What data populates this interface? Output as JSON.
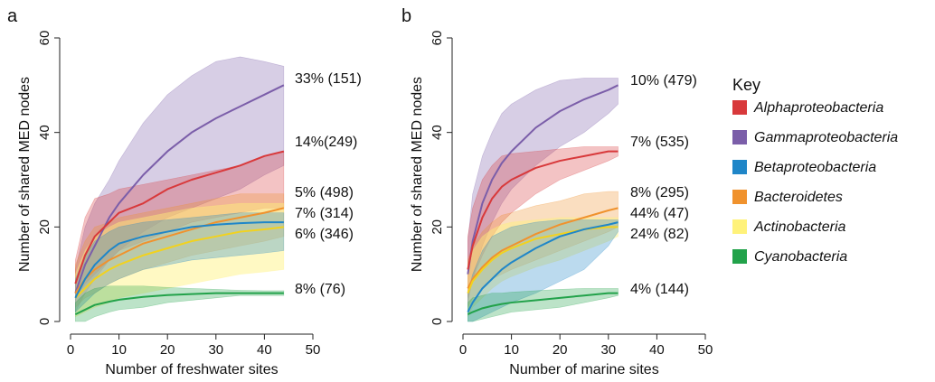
{
  "key": {
    "title": "Key",
    "entries": [
      {
        "label": "Alphaproteobacteria",
        "color": "#d8393b"
      },
      {
        "label": "Gammaproteobacteria",
        "color": "#7b5ea9"
      },
      {
        "label": "Betaproteobacteria",
        "color": "#1f86c8"
      },
      {
        "label": "Bacteroidetes",
        "color": "#f0922d"
      },
      {
        "label": "Actinobacteria",
        "color": "#fff27a"
      },
      {
        "label": "Cyanobacteria",
        "color": "#22a24a"
      }
    ]
  },
  "chart_data": [
    {
      "type": "line",
      "panel": "a",
      "xlabel": "Number of freshwater sites",
      "ylabel": "Number of shared MED nodes",
      "xlim": [
        0,
        50
      ],
      "ylim": [
        0,
        60
      ],
      "xticks": [
        0,
        10,
        20,
        30,
        40,
        50
      ],
      "yticks": [
        0,
        20,
        40,
        60
      ],
      "grid": false,
      "series": [
        {
          "name": "Alphaproteobacteria",
          "annotation": "14%(249)",
          "x": [
            1,
            3,
            5,
            8,
            10,
            15,
            20,
            25,
            30,
            35,
            40,
            44
          ],
          "y": [
            8,
            14,
            18,
            21,
            23,
            25,
            28,
            30,
            31.5,
            33,
            35,
            36
          ],
          "lower": [
            5,
            8,
            10,
            13,
            15,
            17,
            19,
            21,
            22,
            23,
            24,
            24
          ],
          "upper": [
            13,
            22,
            26,
            27,
            28,
            29,
            30,
            31,
            32,
            33,
            35,
            36
          ]
        },
        {
          "name": "Gammaproteobacteria",
          "annotation": "33% (151)",
          "x": [
            1,
            3,
            5,
            8,
            10,
            15,
            20,
            25,
            30,
            35,
            40,
            44
          ],
          "y": [
            6,
            12,
            16,
            22,
            25,
            31,
            36,
            40,
            43,
            45.5,
            48,
            50
          ],
          "lower": [
            2,
            6,
            9,
            13,
            15,
            19,
            22,
            24,
            26,
            28,
            31,
            33
          ],
          "upper": [
            11,
            20,
            25,
            30,
            34,
            42,
            48,
            52,
            55,
            56,
            55,
            54
          ]
        },
        {
          "name": "Betaproteobacteria",
          "annotation": "7% (314)",
          "x": [
            1,
            3,
            5,
            8,
            10,
            15,
            20,
            25,
            30,
            35,
            40,
            44
          ],
          "y": [
            5,
            9,
            12,
            15,
            16.5,
            18,
            19,
            20,
            20.5,
            20.8,
            21,
            21
          ],
          "lower": [
            2,
            4,
            6,
            8,
            9,
            11,
            12,
            13,
            13.5,
            14,
            14.5,
            15
          ],
          "upper": [
            9,
            14,
            17,
            19,
            20,
            21,
            21.5,
            22,
            22.5,
            23,
            23,
            23
          ]
        },
        {
          "name": "Bacteroidetes",
          "annotation": "5% (498)",
          "x": [
            1,
            3,
            5,
            8,
            10,
            15,
            20,
            25,
            30,
            35,
            40,
            44
          ],
          "y": [
            6,
            9,
            11,
            13,
            14,
            16.5,
            18,
            19.5,
            21,
            22,
            23,
            24
          ],
          "lower": [
            3,
            5,
            6,
            8,
            9,
            11,
            12.5,
            14,
            15,
            16,
            17,
            18
          ],
          "upper": [
            12,
            17,
            20,
            21,
            22,
            23,
            24,
            25,
            26,
            27,
            27,
            27
          ]
        },
        {
          "name": "Actinobacteria",
          "annotation": "6% (346)",
          "x": [
            1,
            3,
            5,
            8,
            10,
            15,
            20,
            25,
            30,
            35,
            40,
            44
          ],
          "y": [
            5,
            7,
            9,
            11,
            12,
            14,
            15.5,
            17,
            18,
            19,
            19.5,
            20
          ],
          "lower": [
            1,
            2,
            3,
            4,
            5,
            6,
            7,
            8,
            9,
            10,
            10.5,
            11
          ],
          "upper": [
            10,
            15,
            18,
            20,
            21,
            22,
            23,
            24,
            24.5,
            25,
            25,
            25
          ]
        },
        {
          "name": "Cyanobacteria",
          "annotation": "8% (76)",
          "x": [
            1,
            3,
            5,
            8,
            10,
            15,
            20,
            25,
            30,
            35,
            40,
            44
          ],
          "y": [
            1.5,
            2.5,
            3.5,
            4.2,
            4.6,
            5.2,
            5.6,
            5.8,
            6,
            6,
            6,
            6
          ],
          "lower": [
            0,
            0,
            1,
            2,
            2.5,
            3,
            4,
            4.5,
            5,
            5.5,
            5.5,
            5.5
          ],
          "upper": [
            4,
            6,
            7,
            7.5,
            7.5,
            7.5,
            7.2,
            7,
            6.8,
            6.6,
            6.5,
            6.5
          ]
        }
      ]
    },
    {
      "type": "line",
      "panel": "b",
      "xlabel": "Number of marine sites",
      "ylabel": "Number of shared MED nodes",
      "xlim": [
        0,
        50
      ],
      "ylim": [
        0,
        60
      ],
      "xticks": [
        0,
        10,
        20,
        30,
        40,
        50
      ],
      "yticks": [
        0,
        20,
        40,
        60
      ],
      "grid": false,
      "series": [
        {
          "name": "Alphaproteobacteria",
          "annotation": "7% (535)",
          "x": [
            1,
            2,
            4,
            6,
            8,
            10,
            15,
            20,
            25,
            30,
            32
          ],
          "y": [
            11,
            16,
            22,
            26,
            28.5,
            30,
            32.5,
            34,
            35,
            36,
            36
          ],
          "lower": [
            5,
            9,
            14,
            18,
            21,
            23,
            27,
            30,
            32,
            34,
            35
          ],
          "upper": [
            18,
            24,
            30,
            33,
            35,
            35.5,
            36,
            36.5,
            37,
            37,
            37
          ]
        },
        {
          "name": "Gammaproteobacteria",
          "annotation": "10% (479)",
          "x": [
            1,
            2,
            4,
            6,
            8,
            10,
            15,
            20,
            25,
            30,
            32
          ],
          "y": [
            10,
            17,
            25,
            30,
            33.5,
            36,
            41,
            44.5,
            47,
            49,
            50
          ],
          "lower": [
            4,
            9,
            16,
            21,
            25,
            28,
            33,
            37,
            40,
            44,
            46
          ],
          "upper": [
            17,
            27,
            35,
            40,
            44,
            46,
            49,
            51,
            51.5,
            51.5,
            51.5
          ]
        },
        {
          "name": "Betaproteobacteria",
          "annotation": "44% (47)",
          "x": [
            1,
            2,
            4,
            6,
            8,
            10,
            15,
            20,
            25,
            30,
            32
          ],
          "y": [
            2,
            4,
            7,
            9,
            11,
            12.5,
            15.5,
            18,
            19.5,
            20.5,
            21
          ],
          "lower": [
            0,
            0,
            1,
            2,
            3,
            4,
            6,
            8.5,
            11,
            16,
            19
          ],
          "upper": [
            6,
            10,
            15,
            18,
            19,
            20,
            21,
            21.5,
            21.5,
            21.5,
            21.5
          ]
        },
        {
          "name": "Bacteroidetes",
          "annotation": "8% (295)",
          "x": [
            1,
            2,
            4,
            6,
            8,
            10,
            15,
            20,
            25,
            30,
            32
          ],
          "y": [
            7,
            9,
            11.5,
            13.5,
            15,
            16,
            18.5,
            20.5,
            22,
            23.5,
            24
          ],
          "lower": [
            3,
            5,
            7,
            9,
            10,
            11,
            13,
            15,
            17,
            19,
            20
          ],
          "upper": [
            13,
            16,
            19,
            21,
            22.5,
            23,
            24.5,
            25.5,
            27,
            27.5,
            27.5
          ]
        },
        {
          "name": "Actinobacteria",
          "annotation": "24% (82)",
          "x": [
            1,
            2,
            4,
            6,
            8,
            10,
            15,
            20,
            25,
            30,
            32
          ],
          "y": [
            6,
            8.5,
            11,
            13,
            14.5,
            15.5,
            17.5,
            18.5,
            19.5,
            20,
            20
          ],
          "lower": [
            1,
            3,
            5,
            7,
            8.5,
            9.5,
            11.5,
            13,
            15,
            17,
            18
          ],
          "upper": [
            12,
            15,
            18,
            19.5,
            20.5,
            21,
            21.5,
            22,
            22,
            22,
            22
          ]
        },
        {
          "name": "Cyanobacteria",
          "annotation": "4% (144)",
          "x": [
            1,
            2,
            4,
            6,
            8,
            10,
            15,
            20,
            25,
            30,
            32
          ],
          "y": [
            1.5,
            2,
            2.8,
            3.3,
            3.7,
            4,
            4.5,
            5,
            5.5,
            6,
            6
          ],
          "lower": [
            0,
            0,
            0.5,
            1,
            1.5,
            2,
            2.5,
            3,
            4,
            5,
            5.5
          ],
          "upper": [
            4,
            5,
            5.5,
            6,
            6,
            6.2,
            6.5,
            6.8,
            7,
            7,
            7
          ]
        }
      ]
    }
  ]
}
